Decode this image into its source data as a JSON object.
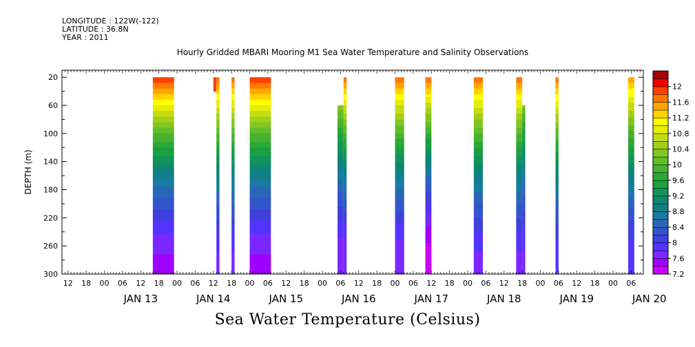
{
  "header": {
    "longitude": "LONGITUDE : 122W(-122)",
    "latitude": "LATITUDE : 36.8N",
    "year": "YEAR : 2011"
  },
  "chart_title": "Hourly Gridded MBARI Mooring M1 Sea Water Temperature and Salinity Observations",
  "bottom_title": "Sea Water Temperature (Celsius)",
  "chart_data": {
    "type": "heatmap",
    "title": "Hourly Gridded MBARI Mooring M1 Sea Water Temperature and Salinity Observations",
    "variable": "Sea Water Temperature (Celsius)",
    "ylabel": "DEPTH (m)",
    "ylim": [
      300,
      10
    ],
    "y_inverted": true,
    "y_ticks": [
      20,
      60,
      100,
      140,
      180,
      220,
      260,
      300
    ],
    "x_range_hours": [
      "2011-01-12 10:00",
      "2011-01-20 10:00"
    ],
    "x_hour_ticks": [
      "12",
      "18",
      "00",
      "06",
      "12",
      "18",
      "00",
      "06",
      "12",
      "18",
      "00",
      "06",
      "12",
      "18",
      "00",
      "06",
      "12",
      "18",
      "00",
      "06",
      "12",
      "18",
      "00",
      "06",
      "12",
      "18",
      "00",
      "06",
      "12",
      "18",
      "00",
      "06"
    ],
    "x_day_labels": [
      "JAN 13",
      "JAN 14",
      "JAN 15",
      "JAN 16",
      "JAN 17",
      "JAN 18",
      "JAN 19",
      "JAN 20"
    ],
    "colorbar": {
      "levels": [
        7.2,
        7.4,
        7.6,
        7.8,
        8.0,
        8.2,
        8.4,
        8.6,
        8.8,
        9.0,
        9.2,
        9.4,
        9.6,
        9.8,
        10.0,
        10.2,
        10.4,
        10.6,
        10.8,
        11.0,
        11.2,
        11.4,
        11.6,
        11.8,
        12.0,
        12.2
      ],
      "labels": [
        "7.2",
        "7.6",
        "8",
        "8.4",
        "8.8",
        "9.2",
        "9.6",
        "10",
        "10.4",
        "10.8",
        "11.2",
        "11.6",
        "12"
      ],
      "colors": [
        "#cc00ff",
        "#a000ff",
        "#7a28ff",
        "#5533ff",
        "#4040dd",
        "#3355cc",
        "#2a66b8",
        "#1a7aa0",
        "#117f88",
        "#0d8870",
        "#10945a",
        "#1aa040",
        "#2ba838",
        "#46b230",
        "#62bc28",
        "#82c620",
        "#a2d018",
        "#c4dc10",
        "#e6ec08",
        "#ffff00",
        "#ffd200",
        "#ffa800",
        "#ff7800",
        "#ff4000",
        "#ee0000",
        "#aa0000"
      ]
    },
    "segments": [
      {
        "start": "2011-01-13 16:00",
        "end": "2011-01-13 23:00",
        "top_depth": 20,
        "bottom_depth": 300,
        "surface_temp": 12.0,
        "bottom_temp": 7.5
      },
      {
        "start": "2011-01-14 12:00",
        "end": "2011-01-14 13:00",
        "top_depth": 20,
        "bottom_depth": 40,
        "surface_temp": 11.9,
        "bottom_temp": 11.8
      },
      {
        "start": "2011-01-14 13:00",
        "end": "2011-01-14 14:00",
        "top_depth": 20,
        "bottom_depth": 300,
        "surface_temp": 11.8,
        "bottom_temp": 7.7
      },
      {
        "start": "2011-01-14 18:00",
        "end": "2011-01-14 19:00",
        "top_depth": 20,
        "bottom_depth": 300,
        "surface_temp": 11.8,
        "bottom_temp": 7.7
      },
      {
        "start": "2011-01-15 00:00",
        "end": "2011-01-15 07:00",
        "top_depth": 20,
        "bottom_depth": 300,
        "surface_temp": 12.0,
        "bottom_temp": 7.5
      },
      {
        "start": "2011-01-16 05:00",
        "end": "2011-01-16 07:00",
        "top_depth": 60,
        "bottom_depth": 300,
        "surface_temp": 11.2,
        "bottom_temp": 7.6
      },
      {
        "start": "2011-01-16 07:00",
        "end": "2011-01-16 08:00",
        "top_depth": 20,
        "bottom_depth": 300,
        "surface_temp": 11.8,
        "bottom_temp": 7.6
      },
      {
        "start": "2011-01-17 00:00",
        "end": "2011-01-17 03:00",
        "top_depth": 20,
        "bottom_depth": 300,
        "surface_temp": 11.8,
        "bottom_temp": 7.6
      },
      {
        "start": "2011-01-17 10:00",
        "end": "2011-01-17 12:00",
        "top_depth": 20,
        "bottom_depth": 300,
        "surface_temp": 11.8,
        "bottom_temp": 7.2
      },
      {
        "start": "2011-01-18 02:00",
        "end": "2011-01-18 05:00",
        "top_depth": 20,
        "bottom_depth": 300,
        "surface_temp": 11.8,
        "bottom_temp": 7.7
      },
      {
        "start": "2011-01-18 16:00",
        "end": "2011-01-18 18:00",
        "top_depth": 20,
        "bottom_depth": 300,
        "surface_temp": 11.8,
        "bottom_temp": 7.7
      },
      {
        "start": "2011-01-18 18:00",
        "end": "2011-01-18 19:00",
        "top_depth": 60,
        "bottom_depth": 300,
        "surface_temp": 11.0,
        "bottom_temp": 7.7
      },
      {
        "start": "2011-01-19 05:00",
        "end": "2011-01-19 06:00",
        "top_depth": 20,
        "bottom_depth": 300,
        "surface_temp": 11.8,
        "bottom_temp": 7.8
      },
      {
        "start": "2011-01-20 05:00",
        "end": "2011-01-20 07:00",
        "top_depth": 20,
        "bottom_depth": 300,
        "surface_temp": 11.6,
        "bottom_temp": 7.8
      }
    ]
  }
}
